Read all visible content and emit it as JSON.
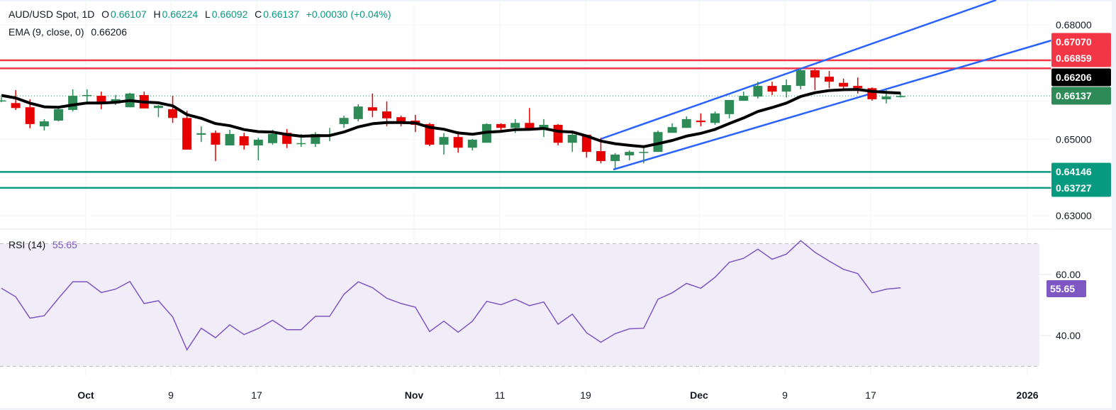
{
  "header": {
    "symbol": "AUD/USD Spot, 1D",
    "open_label": "O",
    "open": "0.66107",
    "high_label": "H",
    "high": "0.66224",
    "low_label": "L",
    "low": "0.66092",
    "close_label": "C",
    "close": "0.66137",
    "change": "+0.00030 (+0.04%)"
  },
  "ema_legend": {
    "label": "EMA (9, close, 0)",
    "value": "0.66206"
  },
  "rsi_legend": {
    "label": "RSI (14)",
    "value": "55.65"
  },
  "price_axis": {
    "ticks": [
      {
        "label": "0.68000",
        "value": 0.68
      },
      {
        "label": "0.65000",
        "value": 0.65
      },
      {
        "label": "0.63000",
        "value": 0.63
      }
    ],
    "tags": [
      {
        "label": "0.67070",
        "value": 0.6707,
        "color": "#f23645"
      },
      {
        "label": "0.66859",
        "value": 0.66859,
        "color": "#f23645"
      },
      {
        "label": "0.66206",
        "value": 0.66206,
        "color": "#000000"
      },
      {
        "label": "0.66137",
        "value": 0.66137,
        "color": "#2e8b57"
      },
      {
        "label": "0.64146",
        "value": 0.64146,
        "color": "#089981"
      },
      {
        "label": "0.63727",
        "value": 0.63727,
        "color": "#089981"
      }
    ]
  },
  "rsi_axis": {
    "ticks": [
      {
        "label": "60.00",
        "value": 60
      },
      {
        "label": "40.00",
        "value": 40
      }
    ],
    "tag": {
      "label": "55.65",
      "value": 55.65,
      "color": "#7e57c2"
    },
    "bands": [
      70,
      50,
      30
    ]
  },
  "time_axis": {
    "labels": [
      "Oct",
      "9",
      "17",
      "Nov",
      "11",
      "19",
      "Dec",
      "9",
      "17",
      "2026"
    ]
  },
  "levels": {
    "resistance": [
      0.6707,
      0.66859
    ],
    "support": [
      0.64146,
      0.63727
    ],
    "resistance_color": "#f23645",
    "support_color": "#089981"
  },
  "colors": {
    "up": "#2e8b57",
    "down": "#e60000",
    "ema": "#000000",
    "channel": "#2962ff",
    "rsi": "#7e57c2",
    "rsi_bg": "#f0ecf8"
  },
  "chart_data": {
    "type": "candlestick",
    "interval": "1D",
    "ema_period": 9,
    "rsi_period": 14,
    "ylim": [
      0.625,
      0.685
    ],
    "rsi_ylim": [
      25,
      75
    ],
    "candles_ohlc": [
      [
        0.66,
        0.661,
        0.6597,
        0.6602
      ],
      [
        0.6595,
        0.6629,
        0.6577,
        0.6582
      ],
      [
        0.6584,
        0.6605,
        0.6529,
        0.654
      ],
      [
        0.6534,
        0.6553,
        0.6523,
        0.6547
      ],
      [
        0.6549,
        0.6581,
        0.6547,
        0.6579
      ],
      [
        0.6577,
        0.6631,
        0.6573,
        0.6614
      ],
      [
        0.6614,
        0.6631,
        0.6592,
        0.6616
      ],
      [
        0.6614,
        0.6625,
        0.6579,
        0.6595
      ],
      [
        0.6594,
        0.6616,
        0.659,
        0.6605
      ],
      [
        0.6584,
        0.6622,
        0.6584,
        0.662
      ],
      [
        0.6616,
        0.6625,
        0.6581,
        0.6581
      ],
      [
        0.6582,
        0.659,
        0.6558,
        0.6588
      ],
      [
        0.6579,
        0.6614,
        0.6543,
        0.6556
      ],
      [
        0.6556,
        0.6575,
        0.6473,
        0.6473
      ],
      [
        0.6512,
        0.6534,
        0.6493,
        0.6516
      ],
      [
        0.6517,
        0.6523,
        0.6443,
        0.6486
      ],
      [
        0.6484,
        0.6525,
        0.6484,
        0.6514
      ],
      [
        0.6508,
        0.6517,
        0.6473,
        0.6484
      ],
      [
        0.6484,
        0.6504,
        0.6445,
        0.6499
      ],
      [
        0.649,
        0.6525,
        0.6486,
        0.6514
      ],
      [
        0.6517,
        0.6527,
        0.6477,
        0.6488
      ],
      [
        0.6488,
        0.6514,
        0.648,
        0.649
      ],
      [
        0.6488,
        0.6519,
        0.648,
        0.6514
      ],
      [
        0.651,
        0.653,
        0.6495,
        0.6512
      ],
      [
        0.654,
        0.6562,
        0.653,
        0.6556
      ],
      [
        0.6553,
        0.6592,
        0.6547,
        0.6586
      ],
      [
        0.6584,
        0.662,
        0.6558,
        0.6575
      ],
      [
        0.6573,
        0.6599,
        0.6534,
        0.6555
      ],
      [
        0.6558,
        0.6562,
        0.6534,
        0.6545
      ],
      [
        0.6549,
        0.6564,
        0.6519,
        0.6538
      ],
      [
        0.654,
        0.6543,
        0.6482,
        0.6486
      ],
      [
        0.6486,
        0.6516,
        0.646,
        0.6506
      ],
      [
        0.6506,
        0.6521,
        0.6465,
        0.6478
      ],
      [
        0.6478,
        0.6501,
        0.6471,
        0.6499
      ],
      [
        0.6491,
        0.6542,
        0.6491,
        0.654
      ],
      [
        0.654,
        0.6542,
        0.6517,
        0.653
      ],
      [
        0.653,
        0.6553,
        0.6517,
        0.6543
      ],
      [
        0.6543,
        0.6582,
        0.6525,
        0.6529
      ],
      [
        0.6529,
        0.6553,
        0.6506,
        0.6538
      ],
      [
        0.6538,
        0.654,
        0.6484,
        0.6491
      ],
      [
        0.6491,
        0.6519,
        0.6467,
        0.6512
      ],
      [
        0.6512,
        0.6512,
        0.6452,
        0.6467
      ],
      [
        0.6469,
        0.6504,
        0.6437,
        0.6443
      ],
      [
        0.6443,
        0.6464,
        0.6423,
        0.646
      ],
      [
        0.6458,
        0.6471,
        0.6445,
        0.6467
      ],
      [
        0.6465,
        0.648,
        0.6437,
        0.6467
      ],
      [
        0.6467,
        0.6523,
        0.6467,
        0.6519
      ],
      [
        0.6517,
        0.6542,
        0.6517,
        0.6532
      ],
      [
        0.653,
        0.656,
        0.653,
        0.6553
      ],
      [
        0.6549,
        0.6568,
        0.6534,
        0.6545
      ],
      [
        0.6543,
        0.6573,
        0.6538,
        0.6568
      ],
      [
        0.6566,
        0.6603,
        0.6555,
        0.6603
      ],
      [
        0.6601,
        0.6625,
        0.6601,
        0.6614
      ],
      [
        0.6612,
        0.6651,
        0.6607,
        0.664
      ],
      [
        0.664,
        0.6651,
        0.6616,
        0.6625
      ],
      [
        0.6625,
        0.6657,
        0.661,
        0.6642
      ],
      [
        0.664,
        0.6687,
        0.6631,
        0.6681
      ],
      [
        0.6681,
        0.6685,
        0.6629,
        0.6662
      ],
      [
        0.6664,
        0.6679,
        0.6634,
        0.6651
      ],
      [
        0.6648,
        0.6659,
        0.6634,
        0.6638
      ],
      [
        0.664,
        0.6662,
        0.662,
        0.6634
      ],
      [
        0.6634,
        0.6636,
        0.6601,
        0.6605
      ],
      [
        0.6605,
        0.6629,
        0.6594,
        0.6612
      ],
      [
        0.66107,
        0.66224,
        0.66092,
        0.66137
      ]
    ],
    "rsi": [
      55.5,
      52.7,
      45.7,
      46.5,
      52.2,
      57.6,
      57.6,
      54.1,
      55.2,
      57.7,
      50.5,
      51.4,
      46.1,
      35.3,
      42.4,
      39.3,
      43.5,
      40.3,
      42.3,
      45.0,
      41.9,
      41.9,
      46.3,
      46.3,
      53.5,
      57.6,
      55.7,
      52.2,
      50.5,
      49.3,
      41.3,
      44.7,
      41.1,
      44.7,
      51.2,
      50.1,
      51.9,
      49.8,
      51.0,
      43.7,
      47.0,
      40.9,
      37.8,
      40.6,
      42.2,
      42.4,
      51.9,
      54.0,
      57.1,
      55.5,
      59.1,
      64.0,
      65.3,
      68.3,
      65.0,
      66.7,
      71.1,
      67.3,
      64.4,
      61.7,
      60.3,
      54.0,
      55.2,
      55.65
    ]
  }
}
